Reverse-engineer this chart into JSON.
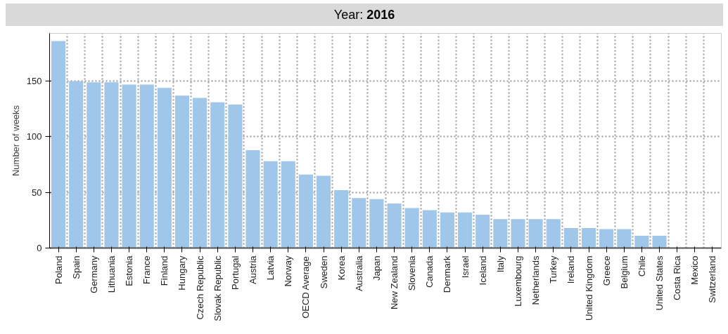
{
  "chart_data": {
    "type": "bar",
    "title": "Year: 2016",
    "ylabel": "Number of weeks",
    "categories": [
      "Poland",
      "Spain",
      "Germany",
      "Lithuania",
      "Estonia",
      "France",
      "Finland",
      "Hungary",
      "Czech Republic",
      "Slovak Republic",
      "Portugal",
      "Austria",
      "Latvia",
      "Norway",
      "OECD Average",
      "Sweden",
      "Korea",
      "Australia",
      "Japan",
      "New Zealand",
      "Slovenia",
      "Canada",
      "Denmark",
      "Israel",
      "Iceland",
      "Italy",
      "Luxembourg",
      "Netherlands",
      "Turkey",
      "Ireland",
      "United Kingdom",
      "Greece",
      "Belgium",
      "Chile",
      "United States",
      "Costa Rica",
      "Mexico",
      "Switzerland"
    ],
    "values": [
      186,
      150,
      149,
      149,
      147,
      147,
      144,
      137,
      135,
      131,
      129,
      88,
      78,
      78,
      66,
      65,
      52,
      45,
      44,
      40,
      36,
      34,
      32,
      32,
      30,
      26,
      26,
      26,
      26,
      18,
      18,
      17,
      17,
      11,
      11,
      0,
      0,
      0
    ],
    "color": "#a0c6ea",
    "ylim": [
      0,
      193
    ],
    "yticks": [
      0,
      50,
      100,
      150
    ],
    "grid": true
  }
}
